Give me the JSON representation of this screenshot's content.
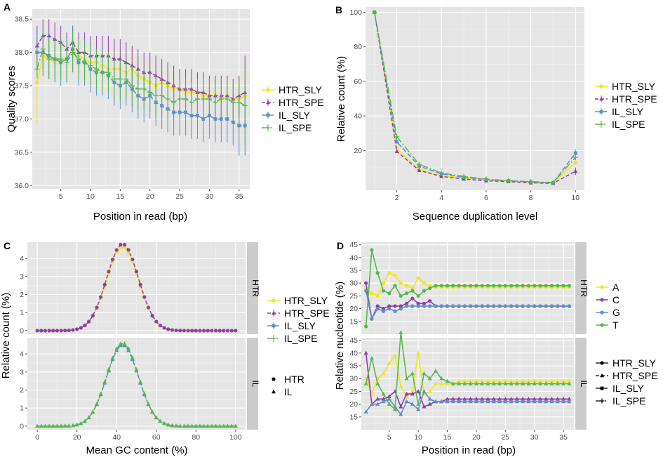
{
  "colors": {
    "HTR_SLY": "#f2e51a",
    "HTR_SPE": "#8f3fa6",
    "IL_SLY": "#5b8fcf",
    "IL_SPE": "#57b84a",
    "A": "#f2e51a",
    "C": "#8f3fa6",
    "G": "#5b8fcf",
    "T": "#57b84a"
  },
  "chart_data": [
    {
      "panel": "A",
      "type": "line",
      "xlabel": "Position in read (bp)",
      "ylabel": "Quality scores",
      "xlim": [
        0.2,
        36.8
      ],
      "ylim": [
        35.95,
        38.65
      ],
      "xticks": [
        5,
        10,
        15,
        20,
        25,
        30,
        35
      ],
      "yticks": [
        36.0,
        36.5,
        37.0,
        37.5,
        38.0,
        38.5
      ],
      "ytick_labels": [
        "36.0",
        "36.5",
        "37.0",
        "37.5",
        "38.0",
        "38.5"
      ],
      "legend": [
        "HTR_SLY",
        "HTR_SPE",
        "IL_SLY",
        "IL_SPE"
      ],
      "x": [
        1,
        2,
        3,
        4,
        5,
        6,
        7,
        8,
        9,
        10,
        11,
        12,
        13,
        14,
        15,
        16,
        17,
        18,
        19,
        20,
        21,
        22,
        23,
        24,
        25,
        26,
        27,
        28,
        29,
        30,
        31,
        32,
        33,
        34,
        35,
        36
      ],
      "series": [
        {
          "name": "HTR_SLY",
          "values": [
            37.55,
            37.95,
            37.9,
            37.85,
            37.9,
            37.9,
            38.05,
            37.95,
            37.9,
            37.85,
            37.85,
            37.8,
            37.75,
            37.75,
            37.75,
            37.7,
            37.75,
            37.65,
            37.6,
            37.55,
            37.5,
            37.55,
            37.5,
            37.45,
            37.45,
            37.4,
            37.4,
            37.4,
            37.35,
            37.35,
            37.35,
            37.3,
            37.35,
            37.3,
            37.3,
            37.35
          ],
          "err": [
            0.65,
            0.3,
            0.3,
            0.3,
            0.3,
            0.3,
            0.3,
            0.25,
            0.3,
            0.3,
            0.3,
            0.3,
            0.3,
            0.3,
            0.3,
            0.3,
            0.3,
            0.3,
            0.3,
            0.3,
            0.3,
            0.3,
            0.3,
            0.3,
            0.3,
            0.3,
            0.3,
            0.3,
            0.3,
            0.3,
            0.3,
            0.3,
            0.3,
            0.3,
            0.3,
            0.3
          ]
        },
        {
          "name": "HTR_SPE",
          "values": [
            38.1,
            38.25,
            38.25,
            38.2,
            38.15,
            38.05,
            38.15,
            38.0,
            38.0,
            37.95,
            37.95,
            37.95,
            37.95,
            37.9,
            37.9,
            37.85,
            37.8,
            37.75,
            37.7,
            37.7,
            37.65,
            37.6,
            37.55,
            37.5,
            37.45,
            37.45,
            37.45,
            37.4,
            37.4,
            37.35,
            37.35,
            37.35,
            37.35,
            37.3,
            37.35,
            37.4
          ],
          "err": [
            0.3,
            0.25,
            0.25,
            0.25,
            0.25,
            0.25,
            0.25,
            0.3,
            0.3,
            0.3,
            0.3,
            0.3,
            0.3,
            0.3,
            0.3,
            0.3,
            0.3,
            0.3,
            0.3,
            0.3,
            0.3,
            0.3,
            0.3,
            0.3,
            0.3,
            0.3,
            0.3,
            0.3,
            0.3,
            0.3,
            0.3,
            0.3,
            0.3,
            0.3,
            0.3,
            0.55
          ]
        },
        {
          "name": "IL_SLY",
          "values": [
            38.0,
            38.0,
            37.95,
            37.9,
            37.85,
            37.9,
            38.05,
            37.85,
            37.85,
            37.75,
            37.7,
            37.7,
            37.65,
            37.55,
            37.5,
            37.55,
            37.45,
            37.35,
            37.3,
            37.35,
            37.25,
            37.2,
            37.15,
            37.1,
            37.1,
            37.1,
            37.05,
            37.05,
            37.0,
            37.05,
            37.0,
            37.0,
            37.0,
            36.95,
            36.9,
            36.9
          ],
          "err": [
            0.35,
            0.35,
            0.35,
            0.35,
            0.35,
            0.35,
            0.35,
            0.35,
            0.35,
            0.35,
            0.35,
            0.35,
            0.35,
            0.35,
            0.35,
            0.35,
            0.35,
            0.35,
            0.35,
            0.35,
            0.35,
            0.35,
            0.35,
            0.35,
            0.35,
            0.35,
            0.35,
            0.35,
            0.35,
            0.35,
            0.35,
            0.35,
            0.35,
            0.35,
            0.45,
            0.45
          ]
        },
        {
          "name": "IL_SPE",
          "values": [
            37.75,
            38.05,
            37.9,
            37.9,
            37.9,
            37.85,
            38.0,
            37.9,
            37.85,
            37.8,
            37.75,
            37.7,
            37.7,
            37.6,
            37.6,
            37.6,
            37.5,
            37.45,
            37.45,
            37.4,
            37.35,
            37.35,
            37.3,
            37.25,
            37.3,
            37.3,
            37.25,
            37.3,
            37.3,
            37.3,
            37.25,
            37.3,
            37.3,
            37.25,
            37.25,
            37.2
          ],
          "err": [
            0.15,
            0.3,
            0.3,
            0.3,
            0.3,
            0.3,
            0.3,
            0.3,
            0.3,
            0.3,
            0.3,
            0.3,
            0.3,
            0.3,
            0.3,
            0.3,
            0.3,
            0.3,
            0.3,
            0.3,
            0.3,
            0.3,
            0.3,
            0.3,
            0.3,
            0.3,
            0.3,
            0.3,
            0.3,
            0.3,
            0.3,
            0.3,
            0.3,
            0.3,
            0.35,
            0.6
          ]
        }
      ]
    },
    {
      "panel": "B",
      "type": "line",
      "xlabel": "Sequence duplication level",
      "ylabel": "Relative count (%)",
      "xlim": [
        0.6,
        10.4
      ],
      "ylim": [
        -3,
        103
      ],
      "xticks": [
        2,
        4,
        6,
        8,
        10
      ],
      "yticks": [
        20,
        40,
        60,
        80,
        100
      ],
      "ytick_labels": [
        "20",
        "40",
        "60",
        "80",
        "100"
      ],
      "legend": [
        "HTR_SLY",
        "HTR_SPE",
        "IL_SLY",
        "IL_SPE"
      ],
      "x": [
        1,
        2,
        3,
        4,
        5,
        6,
        7,
        8,
        9,
        10
      ],
      "series": [
        {
          "name": "HTR_SLY",
          "values": [
            100,
            21,
            9,
            5.5,
            4,
            3,
            2.3,
            1.5,
            1.3,
            13
          ],
          "err": [
            0,
            0,
            0,
            0,
            0,
            0,
            0,
            0,
            0,
            1.5
          ]
        },
        {
          "name": "HTR_SPE",
          "values": [
            100,
            19.5,
            8.5,
            5,
            3.5,
            2.5,
            2,
            1.3,
            1,
            8
          ],
          "err": [
            0,
            0,
            0,
            0,
            0,
            0,
            0,
            0,
            0,
            2.2
          ]
        },
        {
          "name": "IL_SLY",
          "values": [
            100,
            25,
            11,
            6.5,
            4.5,
            3.2,
            2.5,
            1.8,
            1.3,
            18.5
          ],
          "err": [
            0,
            0,
            0,
            0,
            0,
            0,
            0,
            0,
            0,
            2.2
          ]
        },
        {
          "name": "IL_SPE",
          "values": [
            100,
            28,
            12,
            7,
            5,
            3.5,
            2.6,
            2,
            1.5,
            16
          ],
          "err": [
            0,
            0,
            0,
            0,
            0,
            0,
            0,
            0,
            0,
            1.5
          ]
        }
      ]
    },
    {
      "panel": "C",
      "type": "line",
      "xlabel": "Mean GC content (%)",
      "ylabel": "Relative count (%)",
      "xlim": [
        -5,
        105
      ],
      "ylim": [
        -0.2,
        4.9
      ],
      "xticks": [
        0,
        20,
        40,
        60,
        80,
        100
      ],
      "yticks": [
        0,
        1,
        2,
        3,
        4
      ],
      "ytick_labels": [
        "0",
        "1",
        "2",
        "3",
        "4"
      ],
      "facets": [
        "HTR",
        "IL"
      ],
      "legend": [
        "HTR_SLY",
        "HTR_SPE",
        "IL_SLY",
        "IL_SPE"
      ],
      "shape_legend": [
        "HTR",
        "IL"
      ],
      "peak_center": 43,
      "peak_width": 8,
      "series": [
        {
          "name": "HTR_SLY",
          "facet": "HTR",
          "peak": 4.65
        },
        {
          "name": "HTR_SPE",
          "facet": "HTR",
          "peak": 4.8
        },
        {
          "name": "IL_SLY",
          "facet": "IL",
          "peak": 4.5
        },
        {
          "name": "IL_SPE",
          "facet": "IL",
          "peak": 4.6
        }
      ]
    },
    {
      "panel": "D",
      "type": "line",
      "xlabel": "Position in read (bp)",
      "ylabel": "Relative nucleotide (%)",
      "xlim": [
        0.2,
        36.8
      ],
      "ylim": [
        10,
        46
      ],
      "xticks": [
        5,
        10,
        15,
        20,
        25,
        30,
        35
      ],
      "yticks": [
        15,
        20,
        25,
        30,
        35,
        40,
        45
      ],
      "ytick_labels": [
        "15",
        "20",
        "25",
        "30",
        "35",
        "40",
        "45"
      ],
      "facets": [
        "HTR",
        "IL"
      ],
      "legend": [
        "A",
        "C",
        "G",
        "T"
      ],
      "linetype_legend": [
        "HTR_SLY",
        "HTR_SPE",
        "IL_SLY",
        "IL_SPE"
      ],
      "x": [
        1,
        2,
        3,
        4,
        5,
        6,
        7,
        8,
        9,
        10,
        11,
        12,
        13,
        14,
        15,
        16,
        17,
        18,
        19,
        20,
        21,
        22,
        23,
        24,
        25,
        26,
        27,
        28,
        29,
        30,
        31,
        32,
        33,
        34,
        35,
        36
      ],
      "series": [
        {
          "name": "A",
          "facet": "HTR",
          "values": [
            28,
            26,
            25,
            30,
            34,
            33,
            30,
            29,
            28,
            32,
            30,
            29,
            28.5,
            28.5,
            28.5,
            28.5,
            28.5,
            28.5,
            28.5,
            28.5,
            28.5,
            28.5,
            28.5,
            28.5,
            28.5,
            28.5,
            28.5,
            28.5,
            28.5,
            28.5,
            28.5,
            28.5,
            28.5,
            28.5,
            28.5,
            28.5
          ]
        },
        {
          "name": "C",
          "facet": "HTR",
          "values": [
            30,
            16,
            21,
            20,
            21,
            21,
            21,
            22,
            24,
            22,
            22,
            23,
            21,
            21,
            21,
            21,
            21,
            21,
            21,
            21,
            21,
            21,
            21,
            21,
            21,
            21,
            21,
            21,
            21,
            21,
            21,
            21,
            21,
            21,
            21,
            21
          ]
        },
        {
          "name": "G",
          "facet": "HTR",
          "values": [
            27,
            16,
            20,
            19,
            20,
            19,
            20,
            21,
            21,
            21,
            21,
            21,
            21,
            21,
            21,
            21,
            21,
            21,
            21,
            21,
            21,
            21,
            21,
            21,
            21,
            21,
            21,
            21,
            21,
            21,
            21,
            21,
            21,
            21,
            21,
            21
          ]
        },
        {
          "name": "T",
          "facet": "HTR",
          "values": [
            13,
            43,
            34,
            27,
            26,
            29,
            25,
            26,
            27,
            25,
            27,
            28,
            29,
            29,
            29,
            29,
            29,
            29,
            29,
            29,
            29,
            29,
            29,
            29,
            29,
            29,
            29,
            29,
            29,
            29,
            29,
            29,
            29,
            29,
            29,
            29
          ]
        },
        {
          "name": "A",
          "facet": "IL",
          "values": [
            30,
            24,
            30,
            32,
            36,
            39,
            27,
            23,
            25,
            40,
            24,
            25,
            28,
            28,
            28,
            28,
            29,
            29,
            29,
            29,
            29,
            29,
            29,
            29,
            29,
            29,
            29,
            29,
            29,
            29,
            29,
            29,
            29,
            29,
            29,
            29
          ]
        },
        {
          "name": "C",
          "facet": "IL",
          "values": [
            40,
            20,
            22,
            22,
            23,
            25,
            19,
            24,
            24,
            25,
            19,
            20,
            21,
            21,
            22,
            22,
            22,
            22,
            22,
            22,
            22,
            22,
            22,
            22,
            22,
            22,
            22,
            22,
            22,
            22,
            22,
            22,
            22,
            22,
            22,
            22
          ]
        },
        {
          "name": "G",
          "facet": "IL",
          "values": [
            17,
            20,
            20,
            21,
            22,
            19,
            16,
            21,
            20,
            18,
            25,
            22,
            21,
            21,
            21,
            21,
            21,
            21,
            21,
            21,
            21,
            21,
            21,
            21,
            21,
            21,
            21,
            21,
            21,
            21,
            21,
            21,
            21,
            21,
            21,
            21
          ]
        },
        {
          "name": "T",
          "facet": "IL",
          "values": [
            28,
            38,
            28,
            24,
            20,
            18,
            48,
            30,
            32,
            20,
            32,
            30,
            33,
            30,
            29,
            28,
            28,
            28,
            28,
            28,
            28,
            28,
            28,
            28,
            28,
            28,
            28,
            28,
            28,
            28,
            28,
            28,
            28,
            28,
            28,
            28
          ]
        }
      ]
    }
  ]
}
